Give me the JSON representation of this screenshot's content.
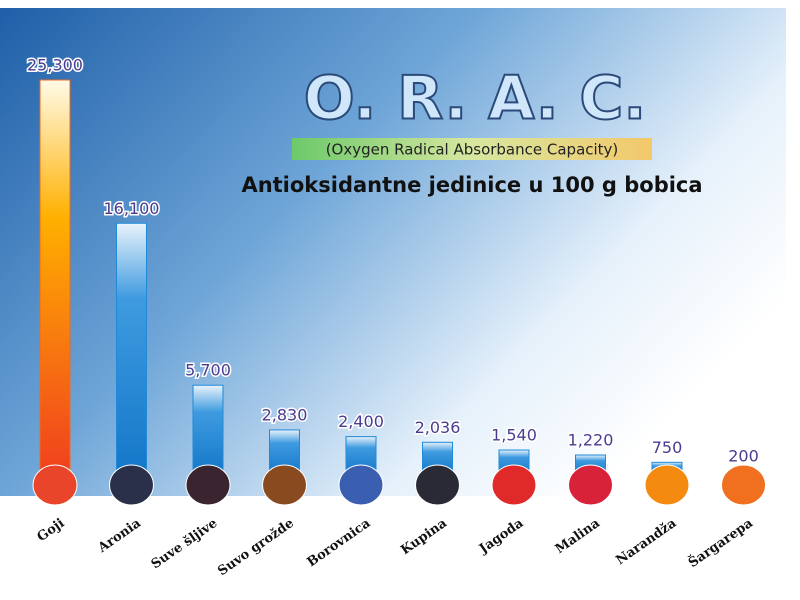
{
  "chart_data": {
    "type": "bar",
    "title": "O. R. A. C.",
    "subtitle": "(Oxygen Radical Absorbance Capacity)",
    "description": "Antioksidantne jedinice u 100 g bobica",
    "categories": [
      "Goji",
      "Aronia",
      "Suve šljive",
      "Suvo grožde",
      "Borovnica",
      "Kupina",
      "Jagoda",
      "Malina",
      "Narandža",
      "Šargarepa"
    ],
    "values": [
      25300,
      16100,
      5700,
      2830,
      2400,
      2036,
      1540,
      1220,
      750,
      200
    ],
    "value_labels": [
      "25,300",
      "16,100",
      "5,700",
      "2,830",
      "2,400",
      "2,036",
      "1,540",
      "1,220",
      "750",
      "200"
    ],
    "colors": [
      "#f06a1e",
      "#1f8ad8",
      "#1f8ad8",
      "#1f8ad8",
      "#1f8ad8",
      "#1f8ad8",
      "#1f8ad8",
      "#1f8ad8",
      "#1f8ad8",
      "#1f8ad8"
    ],
    "grid": false
  }
}
